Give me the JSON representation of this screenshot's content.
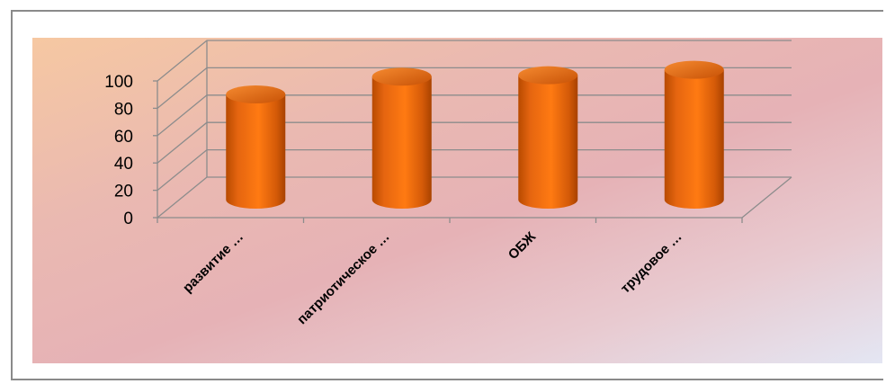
{
  "chart_data": {
    "type": "bar",
    "style": "3d-cylinder",
    "categories": [
      "развитие …",
      "патриотическое …",
      "ОБЖ",
      "трудовое …"
    ],
    "values": [
      77,
      90,
      91,
      95
    ],
    "ylim": [
      0,
      100
    ],
    "yticks": [
      "0",
      "20",
      "40",
      "60",
      "80",
      "100"
    ],
    "title": "",
    "xlabel": "",
    "ylabel": "",
    "grid": true,
    "legend": "none",
    "bar_color": "#f07010"
  }
}
